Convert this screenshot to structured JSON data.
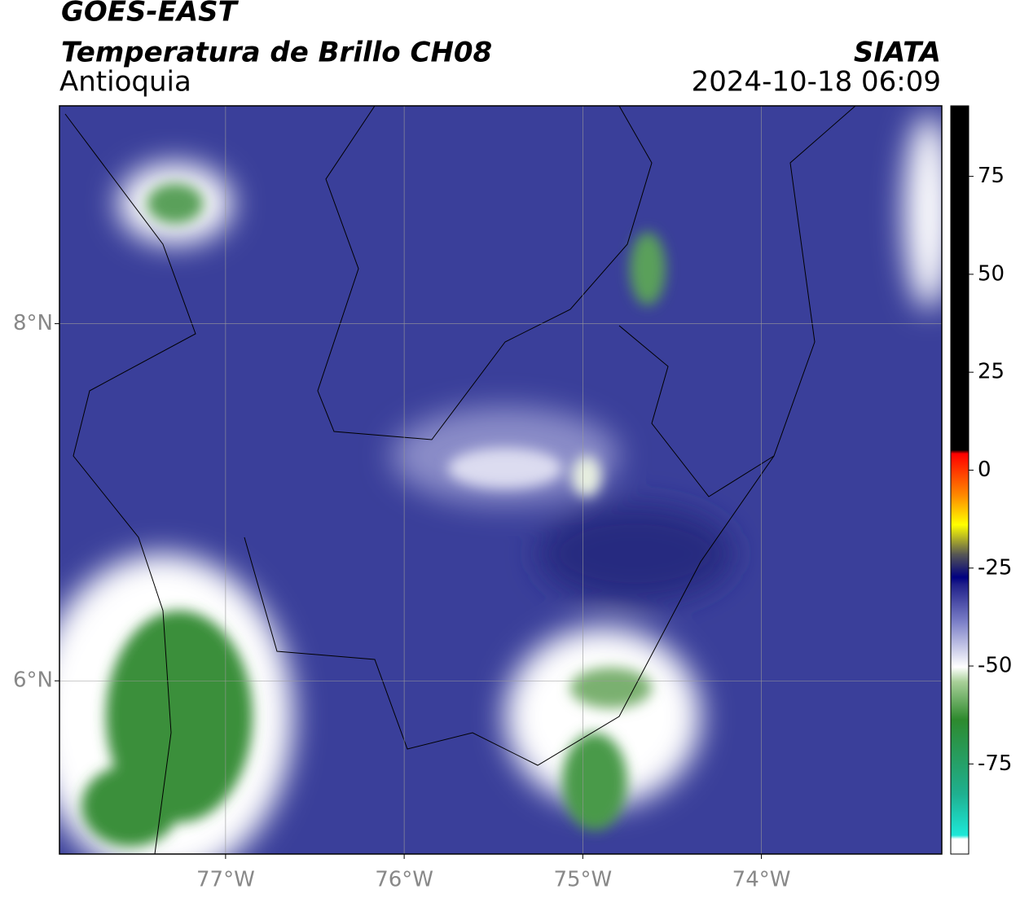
{
  "header": {
    "title": "GOES-EAST",
    "subtitle": "Temperatura de Brillo CH08",
    "region": "Antioquia",
    "source": "SIATA",
    "datetime": "2024-10-18 06:09"
  },
  "map": {
    "xlim": [
      -77.93,
      -72.99
    ],
    "ylim": [
      5.03,
      9.22
    ],
    "xticks": [
      {
        "value": -77,
        "label": "77°W"
      },
      {
        "value": -76,
        "label": "76°W"
      },
      {
        "value": -75,
        "label": "75°W"
      },
      {
        "value": -74,
        "label": "74°W"
      }
    ],
    "yticks": [
      {
        "value": 6,
        "label": "6°N"
      },
      {
        "value": 8,
        "label": "8°N"
      }
    ],
    "grid": true
  },
  "colorbar": {
    "lim": [
      -98,
      93
    ],
    "ticks": [
      75,
      50,
      25,
      0,
      -25,
      -50,
      -75
    ]
  }
}
